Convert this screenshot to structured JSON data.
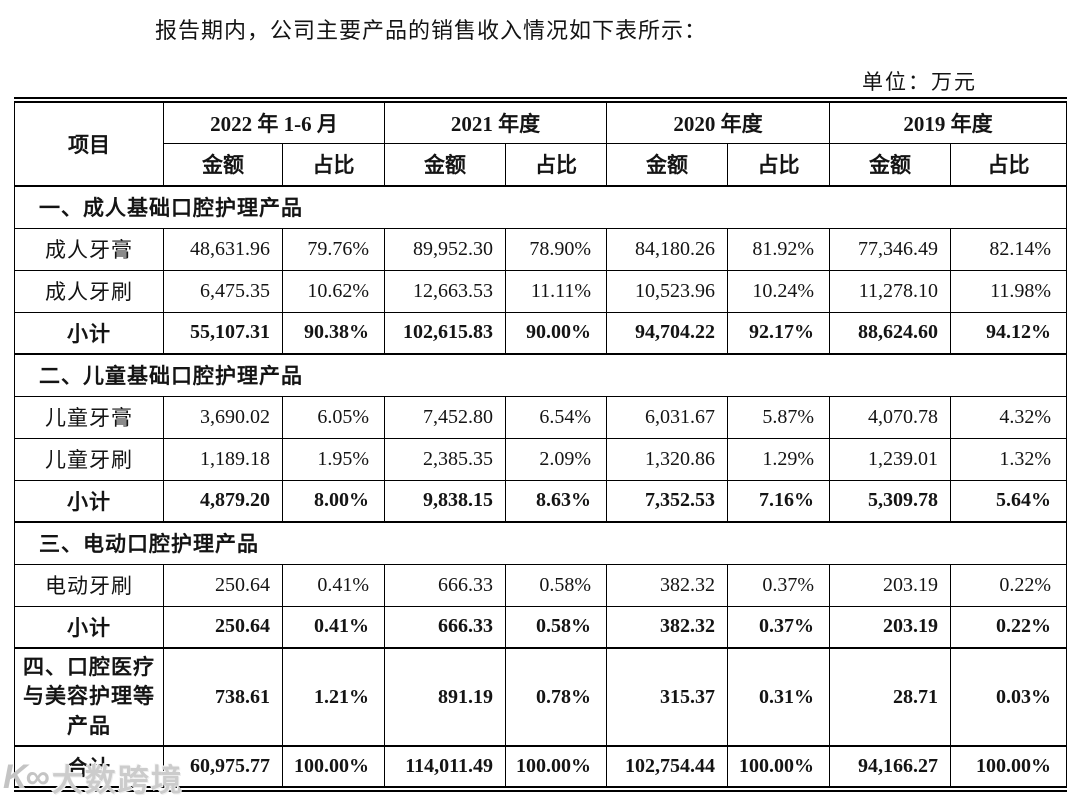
{
  "page": {
    "intro": "报告期内，公司主要产品的销售收入情况如下表所示：",
    "unit_label": "单位：万元",
    "watermark_logo": "K∞",
    "watermark_text": "大数跨境"
  },
  "table": {
    "header": {
      "item_label": "项目",
      "periods": [
        "2022 年 1-6 月",
        "2021 年度",
        "2020 年度",
        "2019 年度"
      ],
      "amount_label": "金额",
      "ratio_label": "占比"
    },
    "sections": [
      {
        "title": "一、成人基础口腔护理产品",
        "rows": [
          {
            "label": "成人牙膏",
            "bold": false,
            "values": [
              "48,631.96",
              "79.76%",
              "89,952.30",
              "78.90%",
              "84,180.26",
              "81.92%",
              "77,346.49",
              "82.14%"
            ]
          },
          {
            "label": "成人牙刷",
            "bold": false,
            "values": [
              "6,475.35",
              "10.62%",
              "12,663.53",
              "11.11%",
              "10,523.96",
              "10.24%",
              "11,278.10",
              "11.98%"
            ]
          },
          {
            "label": "小计",
            "bold": true,
            "values": [
              "55,107.31",
              "90.38%",
              "102,615.83",
              "90.00%",
              "94,704.22",
              "92.17%",
              "88,624.60",
              "94.12%"
            ]
          }
        ]
      },
      {
        "title": "二、儿童基础口腔护理产品",
        "rows": [
          {
            "label": "儿童牙膏",
            "bold": false,
            "values": [
              "3,690.02",
              "6.05%",
              "7,452.80",
              "6.54%",
              "6,031.67",
              "5.87%",
              "4,070.78",
              "4.32%"
            ]
          },
          {
            "label": "儿童牙刷",
            "bold": false,
            "values": [
              "1,189.18",
              "1.95%",
              "2,385.35",
              "2.09%",
              "1,320.86",
              "1.29%",
              "1,239.01",
              "1.32%"
            ]
          },
          {
            "label": "小计",
            "bold": true,
            "values": [
              "4,879.20",
              "8.00%",
              "9,838.15",
              "8.63%",
              "7,352.53",
              "7.16%",
              "5,309.78",
              "5.64%"
            ]
          }
        ]
      },
      {
        "title": "三、电动口腔护理产品",
        "rows": [
          {
            "label": "电动牙刷",
            "bold": false,
            "values": [
              "250.64",
              "0.41%",
              "666.33",
              "0.58%",
              "382.32",
              "0.37%",
              "203.19",
              "0.22%"
            ]
          },
          {
            "label": "小计",
            "bold": true,
            "values": [
              "250.64",
              "0.41%",
              "666.33",
              "0.58%",
              "382.32",
              "0.37%",
              "203.19",
              "0.22%"
            ]
          }
        ]
      }
    ],
    "footer_rows": [
      {
        "type": "category",
        "label": "四、口腔医疗与美容护理等产品",
        "values": [
          "738.61",
          "1.21%",
          "891.19",
          "0.78%",
          "315.37",
          "0.31%",
          "28.71",
          "0.03%"
        ]
      },
      {
        "type": "total",
        "label": "合计",
        "values": [
          "60,975.77",
          "100.00%",
          "114,011.49",
          "100.00%",
          "102,754.44",
          "100.00%",
          "94,166.27",
          "100.00%"
        ]
      }
    ]
  }
}
